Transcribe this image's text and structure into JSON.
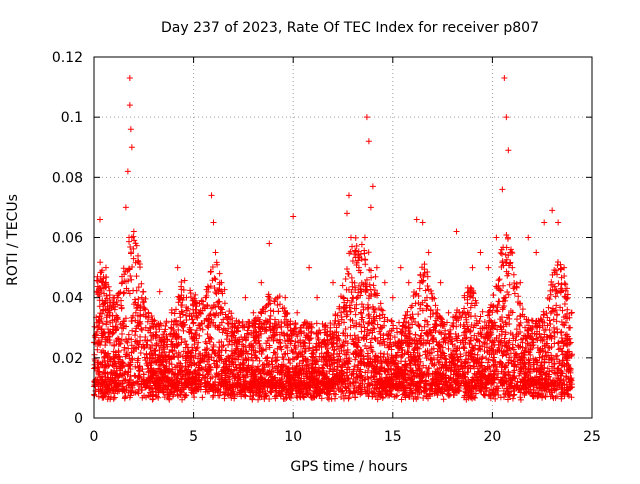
{
  "chart_data": {
    "type": "scatter",
    "title": "Day 237 of 2023, Rate Of TEC Index for receiver p807",
    "xlabel": "GPS time / hours",
    "ylabel": "ROTI / TECUs",
    "xlim": [
      0,
      25
    ],
    "ylim": [
      0,
      0.12
    ],
    "x_ticks": [
      0,
      5,
      10,
      15,
      20,
      25
    ],
    "x_tick_labels": [
      "0",
      "5",
      "10",
      "15",
      "20",
      "25"
    ],
    "y_ticks": [
      0,
      0.02,
      0.04,
      0.06,
      0.08,
      0.1,
      0.12
    ],
    "y_tick_labels": [
      "0",
      "0.02",
      "0.04",
      "0.06",
      "0.08",
      "0.1",
      "0.12"
    ],
    "grid": true,
    "grid_style": "dotted",
    "marker": "plus",
    "series_color": "#ff0000",
    "series": [
      {
        "x": [
          0.1,
          0.2,
          0.3,
          0.4,
          0.5,
          0.6,
          0.8,
          1.0,
          1.2,
          1.4,
          1.6,
          1.7,
          1.8,
          1.8,
          1.85,
          1.9,
          1.9,
          2.0,
          2.1,
          2.2,
          2.4,
          2.6,
          2.8,
          3.0,
          3.3,
          3.6,
          3.9,
          4.2,
          4.5,
          4.8,
          5.0,
          5.3,
          5.6,
          5.9,
          6.0,
          6.1,
          6.2,
          6.4,
          6.8,
          7.2,
          7.6,
          8.0,
          8.4,
          8.8,
          9.2,
          9.6,
          10.0,
          10.2,
          10.4,
          10.8,
          11.2,
          11.6,
          12.0,
          12.4,
          12.7,
          12.8,
          12.9,
          13.0,
          13.3,
          13.6,
          13.7,
          13.8,
          13.9,
          14.0,
          14.2,
          14.6,
          15.0,
          15.4,
          15.8,
          16.2,
          16.5,
          16.8,
          17.0,
          17.4,
          17.8,
          18.2,
          18.6,
          19.0,
          19.4,
          19.8,
          20.2,
          20.5,
          20.6,
          20.7,
          20.8,
          21.0,
          21.4,
          21.8,
          22.2,
          22.6,
          23.0,
          23.3,
          23.6,
          23.9
        ],
        "y": [
          0.012,
          0.03,
          0.066,
          0.045,
          0.02,
          0.05,
          0.035,
          0.015,
          0.04,
          0.03,
          0.07,
          0.082,
          0.113,
          0.104,
          0.096,
          0.09,
          0.06,
          0.062,
          0.035,
          0.025,
          0.04,
          0.03,
          0.02,
          0.015,
          0.042,
          0.02,
          0.035,
          0.05,
          0.04,
          0.03,
          0.02,
          0.035,
          0.04,
          0.074,
          0.065,
          0.055,
          0.03,
          0.045,
          0.02,
          0.03,
          0.04,
          0.035,
          0.045,
          0.058,
          0.03,
          0.04,
          0.067,
          0.035,
          0.03,
          0.05,
          0.04,
          0.03,
          0.045,
          0.035,
          0.068,
          0.074,
          0.06,
          0.04,
          0.05,
          0.06,
          0.1,
          0.092,
          0.07,
          0.077,
          0.05,
          0.045,
          0.04,
          0.05,
          0.045,
          0.066,
          0.065,
          0.055,
          0.04,
          0.045,
          0.035,
          0.062,
          0.04,
          0.05,
          0.055,
          0.05,
          0.06,
          0.076,
          0.113,
          0.1,
          0.089,
          0.05,
          0.045,
          0.06,
          0.055,
          0.065,
          0.069,
          0.065,
          0.05,
          0.03
        ],
        "envelope_note": ""
      }
    ]
  }
}
